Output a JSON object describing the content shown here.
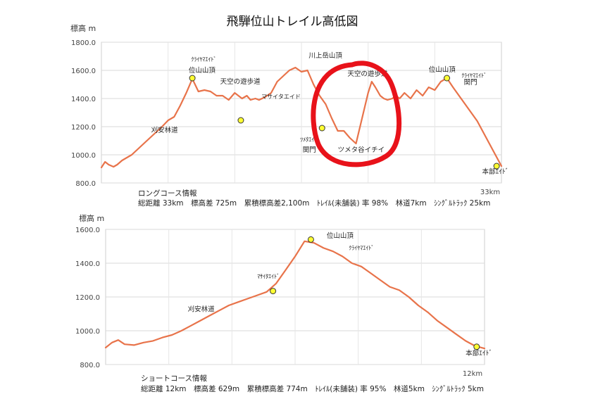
{
  "title": "飛騨位山トレイル高低図",
  "chart_data": [
    {
      "type": "line",
      "ylabel": "標高 m",
      "ylim": [
        800,
        1800
      ],
      "yticks": [
        "1800.0",
        "1600.0",
        "1400.0",
        "1200.0",
        "1000.0",
        "800.0"
      ],
      "xlim": [
        0,
        33
      ],
      "end_label": "33km",
      "series": [
        {
          "x": [
            0,
            0.3,
            0.6,
            1,
            1.3,
            1.7,
            2,
            2.5,
            3,
            3.5,
            4,
            4.5,
            5,
            5.5,
            6,
            6.5,
            7,
            7.5,
            8,
            8.5,
            9,
            9.5,
            10,
            10.5,
            11,
            11.3,
            11.6,
            12,
            12.3,
            12.7,
            13,
            13.5,
            14,
            14.5,
            15,
            15.5,
            16,
            16.5,
            17,
            17.5,
            18,
            18.5,
            19,
            19.5,
            20,
            20.5,
            21,
            21.5,
            22,
            22.3,
            22.6,
            23,
            23.3,
            23.6,
            24,
            24.3,
            24.6,
            25,
            25.5,
            26,
            26.5,
            27,
            27.5,
            28,
            28.5,
            29,
            29.5,
            30,
            30.5,
            31,
            31.5,
            32,
            32.5,
            33
          ],
          "y": [
            910,
            950,
            930,
            915,
            930,
            960,
            975,
            1000,
            1040,
            1080,
            1120,
            1160,
            1200,
            1245,
            1270,
            1350,
            1440,
            1540,
            1450,
            1460,
            1450,
            1420,
            1420,
            1390,
            1440,
            1420,
            1400,
            1420,
            1390,
            1400,
            1390,
            1410,
            1440,
            1520,
            1560,
            1600,
            1620,
            1590,
            1600,
            1500,
            1420,
            1360,
            1260,
            1170,
            1170,
            1120,
            1080,
            1260,
            1440,
            1520,
            1480,
            1420,
            1400,
            1390,
            1400,
            1420,
            1400,
            1440,
            1400,
            1460,
            1420,
            1480,
            1460,
            1520,
            1545,
            1480,
            1420,
            1360,
            1300,
            1240,
            1160,
            1080,
            1000,
            920
          ]
        }
      ],
      "markers": [
        {
          "x": 11.5,
          "y": 1245,
          "label": "ﾏｻｲﾀｴｲﾄﾞ"
        },
        {
          "x": 7.5,
          "y": 1545,
          "label": "位山山頂"
        },
        {
          "x": 18.2,
          "y": 1190,
          "label": "ﾂﾒﾀ"
        },
        {
          "x": 28.5,
          "y": 1545,
          "label": "位山山頂"
        },
        {
          "x": 32.6,
          "y": 920,
          "label": "本部ｴｲﾄﾞ"
        }
      ],
      "annotations": [
        {
          "x": 7.4,
          "y": 1665,
          "text": "ｸﾗｲﾔﾏｴｲﾄﾞ",
          "size": "sm"
        },
        {
          "x": 7.2,
          "y": 1585,
          "text": "位山山頂"
        },
        {
          "x": 9.8,
          "y": 1505,
          "text": "天空の遊歩道"
        },
        {
          "x": 13.2,
          "y": 1400,
          "text": "マサイタエイド",
          "size": "sm"
        },
        {
          "x": 4.1,
          "y": 1160,
          "text": "刈安林道"
        },
        {
          "x": 17.1,
          "y": 1690,
          "text": "川上岳山頂"
        },
        {
          "x": 16.4,
          "y": 1095,
          "text": "ﾂﾒﾀｴｲﾄﾞ",
          "size": "sm"
        },
        {
          "x": 16.6,
          "y": 1020,
          "text": "関門"
        },
        {
          "x": 19.5,
          "y": 1020,
          "text": "ツメタ谷イチイ"
        },
        {
          "x": 20.3,
          "y": 1560,
          "text": "天空の遊歩道"
        },
        {
          "x": 27.0,
          "y": 1590,
          "text": "位山山頂"
        },
        {
          "x": 29.7,
          "y": 1550,
          "text": "ｸﾗｲﾔﾏｴｲﾄﾞ",
          "size": "sm"
        },
        {
          "x": 29.9,
          "y": 1500,
          "text": "関門"
        },
        {
          "x": 31.4,
          "y": 865,
          "text": "本部ｴｲﾄﾞ"
        }
      ],
      "info": {
        "heading": "ロングコース情報",
        "line": "総距離 33km　標高差 725m　累積標高差2,100m　ﾄﾚｲﾙ(未舗装) 率 98%　林道7km　ｼﾝｸﾞﾙﾄﾗｯｸ 25km"
      }
    },
    {
      "type": "line",
      "ylabel": "標高 m",
      "ylim": [
        800,
        1600
      ],
      "yticks": [
        "1600.0",
        "1400.0",
        "1200.0",
        "1000.0",
        "800.0"
      ],
      "xlim": [
        0,
        12
      ],
      "end_label": "12km",
      "series": [
        {
          "x": [
            0,
            0.2,
            0.4,
            0.6,
            0.9,
            1.2,
            1.5,
            1.8,
            2.1,
            2.4,
            2.7,
            3,
            3.3,
            3.6,
            3.9,
            4.2,
            4.5,
            4.8,
            5.1,
            5.4,
            5.7,
            6,
            6.3,
            6.6,
            6.9,
            7.2,
            7.5,
            7.8,
            8.1,
            8.4,
            8.7,
            9,
            9.3,
            9.6,
            9.9,
            10.2,
            10.5,
            10.8,
            11.1,
            11.4,
            11.7,
            12
          ],
          "y": [
            900,
            930,
            945,
            920,
            915,
            930,
            940,
            960,
            975,
            1000,
            1030,
            1060,
            1090,
            1120,
            1150,
            1170,
            1190,
            1210,
            1230,
            1280,
            1360,
            1440,
            1530,
            1520,
            1490,
            1470,
            1440,
            1400,
            1380,
            1340,
            1300,
            1260,
            1240,
            1200,
            1150,
            1110,
            1060,
            1020,
            980,
            940,
            910,
            895
          ]
        }
      ],
      "markers": [
        {
          "x": 5.3,
          "y": 1235,
          "label": "ﾏｻｲﾀｴｲﾄﾞ"
        },
        {
          "x": 6.5,
          "y": 1540,
          "label": "位山山頂"
        },
        {
          "x": 11.75,
          "y": 905,
          "label": "本部ｴｲﾄﾞ"
        }
      ],
      "annotations": [
        {
          "x": 4.8,
          "y": 1310,
          "text": "ﾏｻｲﾀｴｲﾄﾞ",
          "size": "sm"
        },
        {
          "x": 7.0,
          "y": 1550,
          "text": "位山山頂"
        },
        {
          "x": 7.7,
          "y": 1480,
          "text": "ｸﾗｲﾔﾏｴｲﾄﾞ",
          "size": "sm"
        },
        {
          "x": 2.6,
          "y": 1115,
          "text": "刈安林道"
        },
        {
          "x": 11.4,
          "y": 855,
          "text": "本部ｴｲﾄﾞ"
        }
      ],
      "info": {
        "heading": "ショートコース情報",
        "line": "総距離 12km　標高差 629m　累積標高差 774m　ﾄﾚｲﾙ(未舗装) 率 95%　林道5km　ｼﾝｸﾞﾙﾄﾗｯｸ 5km"
      }
    }
  ]
}
